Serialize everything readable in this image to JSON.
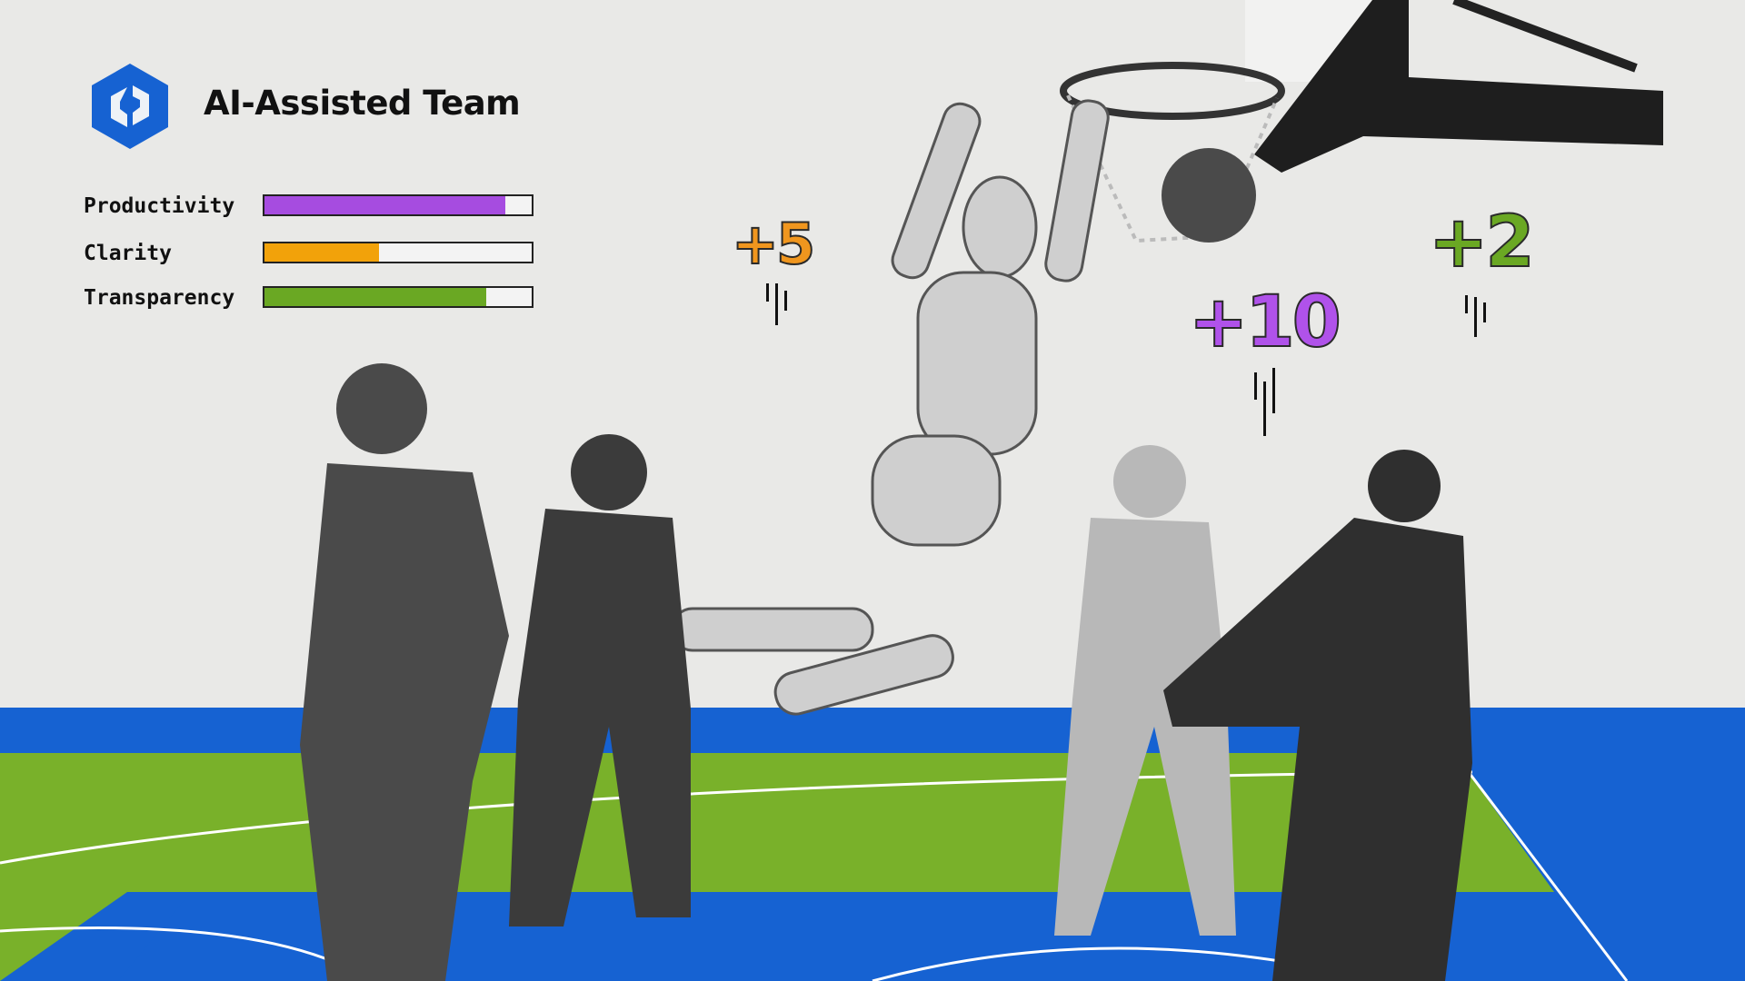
{
  "header": {
    "title": "AI-Assisted Team",
    "logo_icon": "hexagon-logo-icon"
  },
  "metrics": [
    {
      "label": "Productivity",
      "value": 0.9,
      "color": "#a64ce0"
    },
    {
      "label": "Clarity",
      "value": 0.43,
      "color": "#f2a20a"
    },
    {
      "label": "Transparency",
      "value": 0.83,
      "color": "#6aa823"
    }
  ],
  "scores": [
    {
      "text": "+5",
      "color": "#f0961e"
    },
    {
      "text": "+10",
      "color": "#b052ea"
    },
    {
      "text": "+2",
      "color": "#6aa823"
    }
  ],
  "colors": {
    "court_blue": "#1662d2",
    "court_green": "#79b12a",
    "background": "#e9e9e7"
  }
}
